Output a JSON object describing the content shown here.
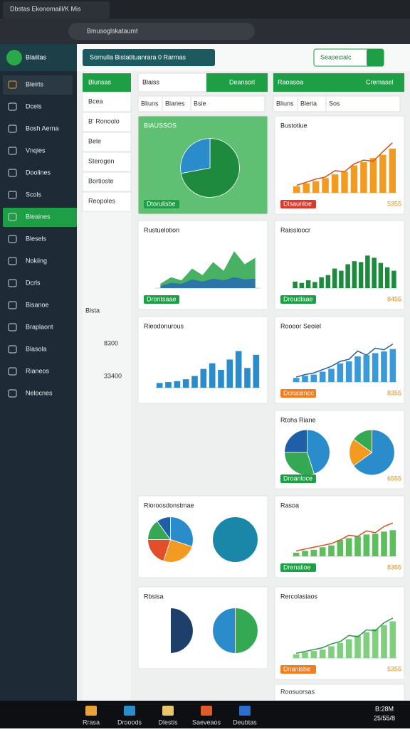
{
  "tab": {
    "title": "Dbstas Ekonomaill/K Mis"
  },
  "address": {
    "url": "Bmusoglskataumt"
  },
  "app": {
    "logo": "Blaiitas",
    "banner": "Sornulla Bistatituanrara 0 Rarmas",
    "action": "Seasecialc"
  },
  "sidebar": {
    "items": [
      "Bleirts",
      "Dcels",
      "Bosh Aerna",
      "Vnqies",
      "Doolines",
      "Scols",
      "Bleaines",
      "Blesels",
      "Nokiing",
      "Dcrls",
      "Bisanoe",
      "Braplaont",
      "Blasola",
      "Rianeos",
      "Nelocnes"
    ],
    "active": 6
  },
  "subnav": {
    "title": "Blunsas",
    "items": [
      "Bcea",
      "B' Ronoolo",
      "Bele",
      "Sterogen",
      "Bortioste",
      "Reopoles"
    ],
    "labels": [
      "Blsta",
      "8300",
      "33400"
    ]
  },
  "panels": {
    "left": {
      "title": "Blaiss",
      "button": "Deansorl",
      "filters": [
        "Bliuns",
        "Blaries",
        "Bsie"
      ]
    },
    "right": {
      "title": "Raoasoa",
      "button": "Cremasel",
      "filters": [
        "Bliuns",
        "Bleria",
        "Sos"
      ]
    }
  },
  "charts": [
    {
      "type": "pie",
      "title": "BIAUSSOS",
      "button": "Dtorulisbe",
      "background": "#5fbf72",
      "series": [
        {
          "values": [
            72,
            28
          ],
          "colors": [
            "#1e8a3e",
            "#2a8ccb"
          ]
        }
      ]
    },
    {
      "type": "bar",
      "title": "Bustotiue",
      "button": "Dlsaunloe",
      "note": "5355",
      "ylim": [
        0,
        100
      ],
      "series": [
        {
          "type": "bar",
          "color": "#f39a21",
          "values": [
            12,
            18,
            22,
            28,
            35,
            40,
            52,
            58,
            66,
            72,
            84
          ]
        },
        {
          "type": "line",
          "color": "#d4511e",
          "values": [
            14,
            20,
            26,
            30,
            42,
            40,
            55,
            62,
            60,
            78,
            95
          ]
        }
      ]
    },
    {
      "type": "bar",
      "title": "Rustuelotion",
      "button": "Drontsaae",
      "ylim": [
        0,
        100
      ],
      "series": [
        {
          "type": "area",
          "color": "#35a853",
          "values": [
            10,
            25,
            18,
            45,
            30,
            60,
            40,
            85,
            55,
            70
          ]
        },
        {
          "type": "area",
          "color": "#2a6fb0",
          "values": [
            5,
            12,
            10,
            20,
            15,
            22,
            18,
            25,
            20,
            22
          ]
        }
      ]
    },
    {
      "type": "bar",
      "title": "Raissloocr",
      "button": "Droudlaae",
      "note": "8455",
      "ylim": [
        0,
        100
      ],
      "series": [
        {
          "type": "bar",
          "color": "#1e8a3e",
          "values": [
            15,
            12,
            18,
            14,
            25,
            30,
            45,
            40,
            55,
            62,
            60,
            75,
            70,
            58,
            48,
            40
          ]
        }
      ]
    },
    {
      "type": "bar",
      "title": "Rieodonurous",
      "ylim": [
        0,
        100
      ],
      "series": [
        {
          "type": "bar",
          "color": "#2a8ccb",
          "values": [
            10,
            12,
            14,
            18,
            25,
            40,
            52,
            38,
            60,
            78,
            42,
            70
          ]
        }
      ]
    },
    {
      "type": "bar",
      "title": "Roooor Seoiel",
      "button": "Dcrucenoc",
      "note": "8355",
      "ylim": [
        0,
        100
      ],
      "series": [
        {
          "type": "bar",
          "color": "#3a9ad9",
          "values": [
            10,
            15,
            18,
            25,
            32,
            45,
            50,
            62,
            65,
            70,
            74,
            80
          ]
        },
        {
          "type": "line",
          "color": "#1f5fa8",
          "values": [
            12,
            18,
            22,
            30,
            38,
            50,
            55,
            75,
            65,
            82,
            78,
            92
          ]
        }
      ]
    },
    {
      "type": "pie",
      "title": "Rtohs Riane",
      "button": "Droanloce",
      "note": "6555",
      "series": [
        {
          "values": [
            45,
            30,
            25
          ],
          "colors": [
            "#2a8ccb",
            "#35a853",
            "#1f5fa8"
          ]
        },
        {
          "values": [
            65,
            20,
            15
          ],
          "colors": [
            "#2a8ccb",
            "#f39a21",
            "#35a853"
          ]
        }
      ]
    },
    {
      "type": "pie",
      "title": "Rioroosdonstmae",
      "series": [
        {
          "values": [
            30,
            25,
            20,
            15,
            10
          ],
          "colors": [
            "#2a8ccb",
            "#f39a21",
            "#e04e2a",
            "#35a853",
            "#1f5fa8"
          ]
        },
        {
          "values": [
            100
          ],
          "colors": [
            "#1a87a8"
          ]
        }
      ]
    },
    {
      "type": "bar",
      "title": "Rasoa",
      "button": "Drenalioe",
      "note": "8355",
      "ylim": [
        0,
        100
      ],
      "series": [
        {
          "type": "bar",
          "color": "#5cbf5c",
          "values": [
            10,
            15,
            18,
            25,
            30,
            45,
            50,
            55,
            60,
            62,
            68,
            72
          ]
        },
        {
          "type": "line",
          "color": "#d4511e",
          "values": [
            15,
            20,
            25,
            30,
            35,
            45,
            58,
            55,
            70,
            65,
            82,
            92
          ]
        }
      ]
    },
    {
      "type": "pie",
      "title": "Rbsisa",
      "series": [
        {
          "values": [
            50,
            50
          ],
          "colors": [
            "#1f3f6b",
            "#ffffff"
          ]
        },
        {
          "values": [
            50,
            50
          ],
          "colors": [
            "#35a853",
            "#2a8ccb"
          ]
        }
      ]
    },
    {
      "type": "bar",
      "title": "Rercolasiaos",
      "button": "Dnanlsbe",
      "note": "5355",
      "ylim": [
        0,
        100
      ],
      "series": [
        {
          "type": "bar",
          "color": "#7fcf7f",
          "values": [
            8,
            12,
            15,
            18,
            25,
            32,
            40,
            48,
            55,
            62,
            70,
            78
          ]
        },
        {
          "type": "line",
          "color": "#2a9a4a",
          "values": [
            10,
            14,
            18,
            22,
            30,
            35,
            48,
            45,
            60,
            58,
            75,
            85
          ]
        }
      ]
    }
  ],
  "footer_card": {
    "title": "Roosuorsas"
  },
  "taskbar": {
    "apps": [
      "Rrasa",
      "Drooods",
      "Dlestis",
      "Saeveaos",
      "Deubtas"
    ],
    "time": "B:28M",
    "date": "25/55/8"
  }
}
